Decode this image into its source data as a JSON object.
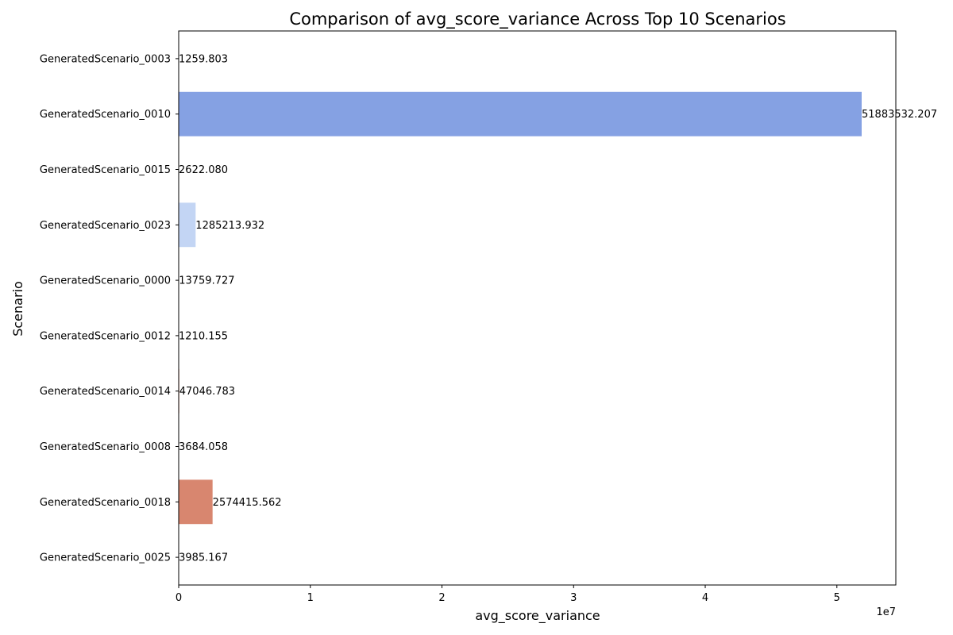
{
  "chart_data": {
    "type": "bar",
    "orientation": "horizontal",
    "title": "Comparison of avg_score_variance Across Top 10 Scenarios",
    "xlabel": "avg_score_variance",
    "ylabel": "Scenario",
    "x_offset_text": "1e7",
    "xlim": [
      0,
      54477708.8
    ],
    "xticks": [
      0,
      10000000,
      20000000,
      30000000,
      40000000,
      50000000
    ],
    "xtick_labels": [
      "0",
      "1",
      "2",
      "3",
      "4",
      "5"
    ],
    "grid": false,
    "legend": "none",
    "categories": [
      "GeneratedScenario_0003",
      "GeneratedScenario_0010",
      "GeneratedScenario_0015",
      "GeneratedScenario_0023",
      "GeneratedScenario_0000",
      "GeneratedScenario_0012",
      "GeneratedScenario_0014",
      "GeneratedScenario_0008",
      "GeneratedScenario_0018",
      "GeneratedScenario_0025"
    ],
    "values": [
      1259.803,
      51883532.207,
      2622.08,
      1285213.932,
      13759.727,
      1210.155,
      47046.783,
      3684.058,
      2574415.562,
      3985.167
    ],
    "data_labels": [
      "1259.803",
      "51883532.207",
      "2622.080",
      "1285213.932",
      "13759.727",
      "1210.155",
      "47046.783",
      "3684.058",
      "2574415.562",
      "3985.167"
    ],
    "colors": [
      "#3b4cc0",
      "#85a1e3",
      "#9dbdff",
      "#c3d5f4",
      "#dfdbd8",
      "#f1cdba",
      "#f6b79c",
      "#eb9a7d",
      "#d8866f",
      "#b40426"
    ]
  }
}
